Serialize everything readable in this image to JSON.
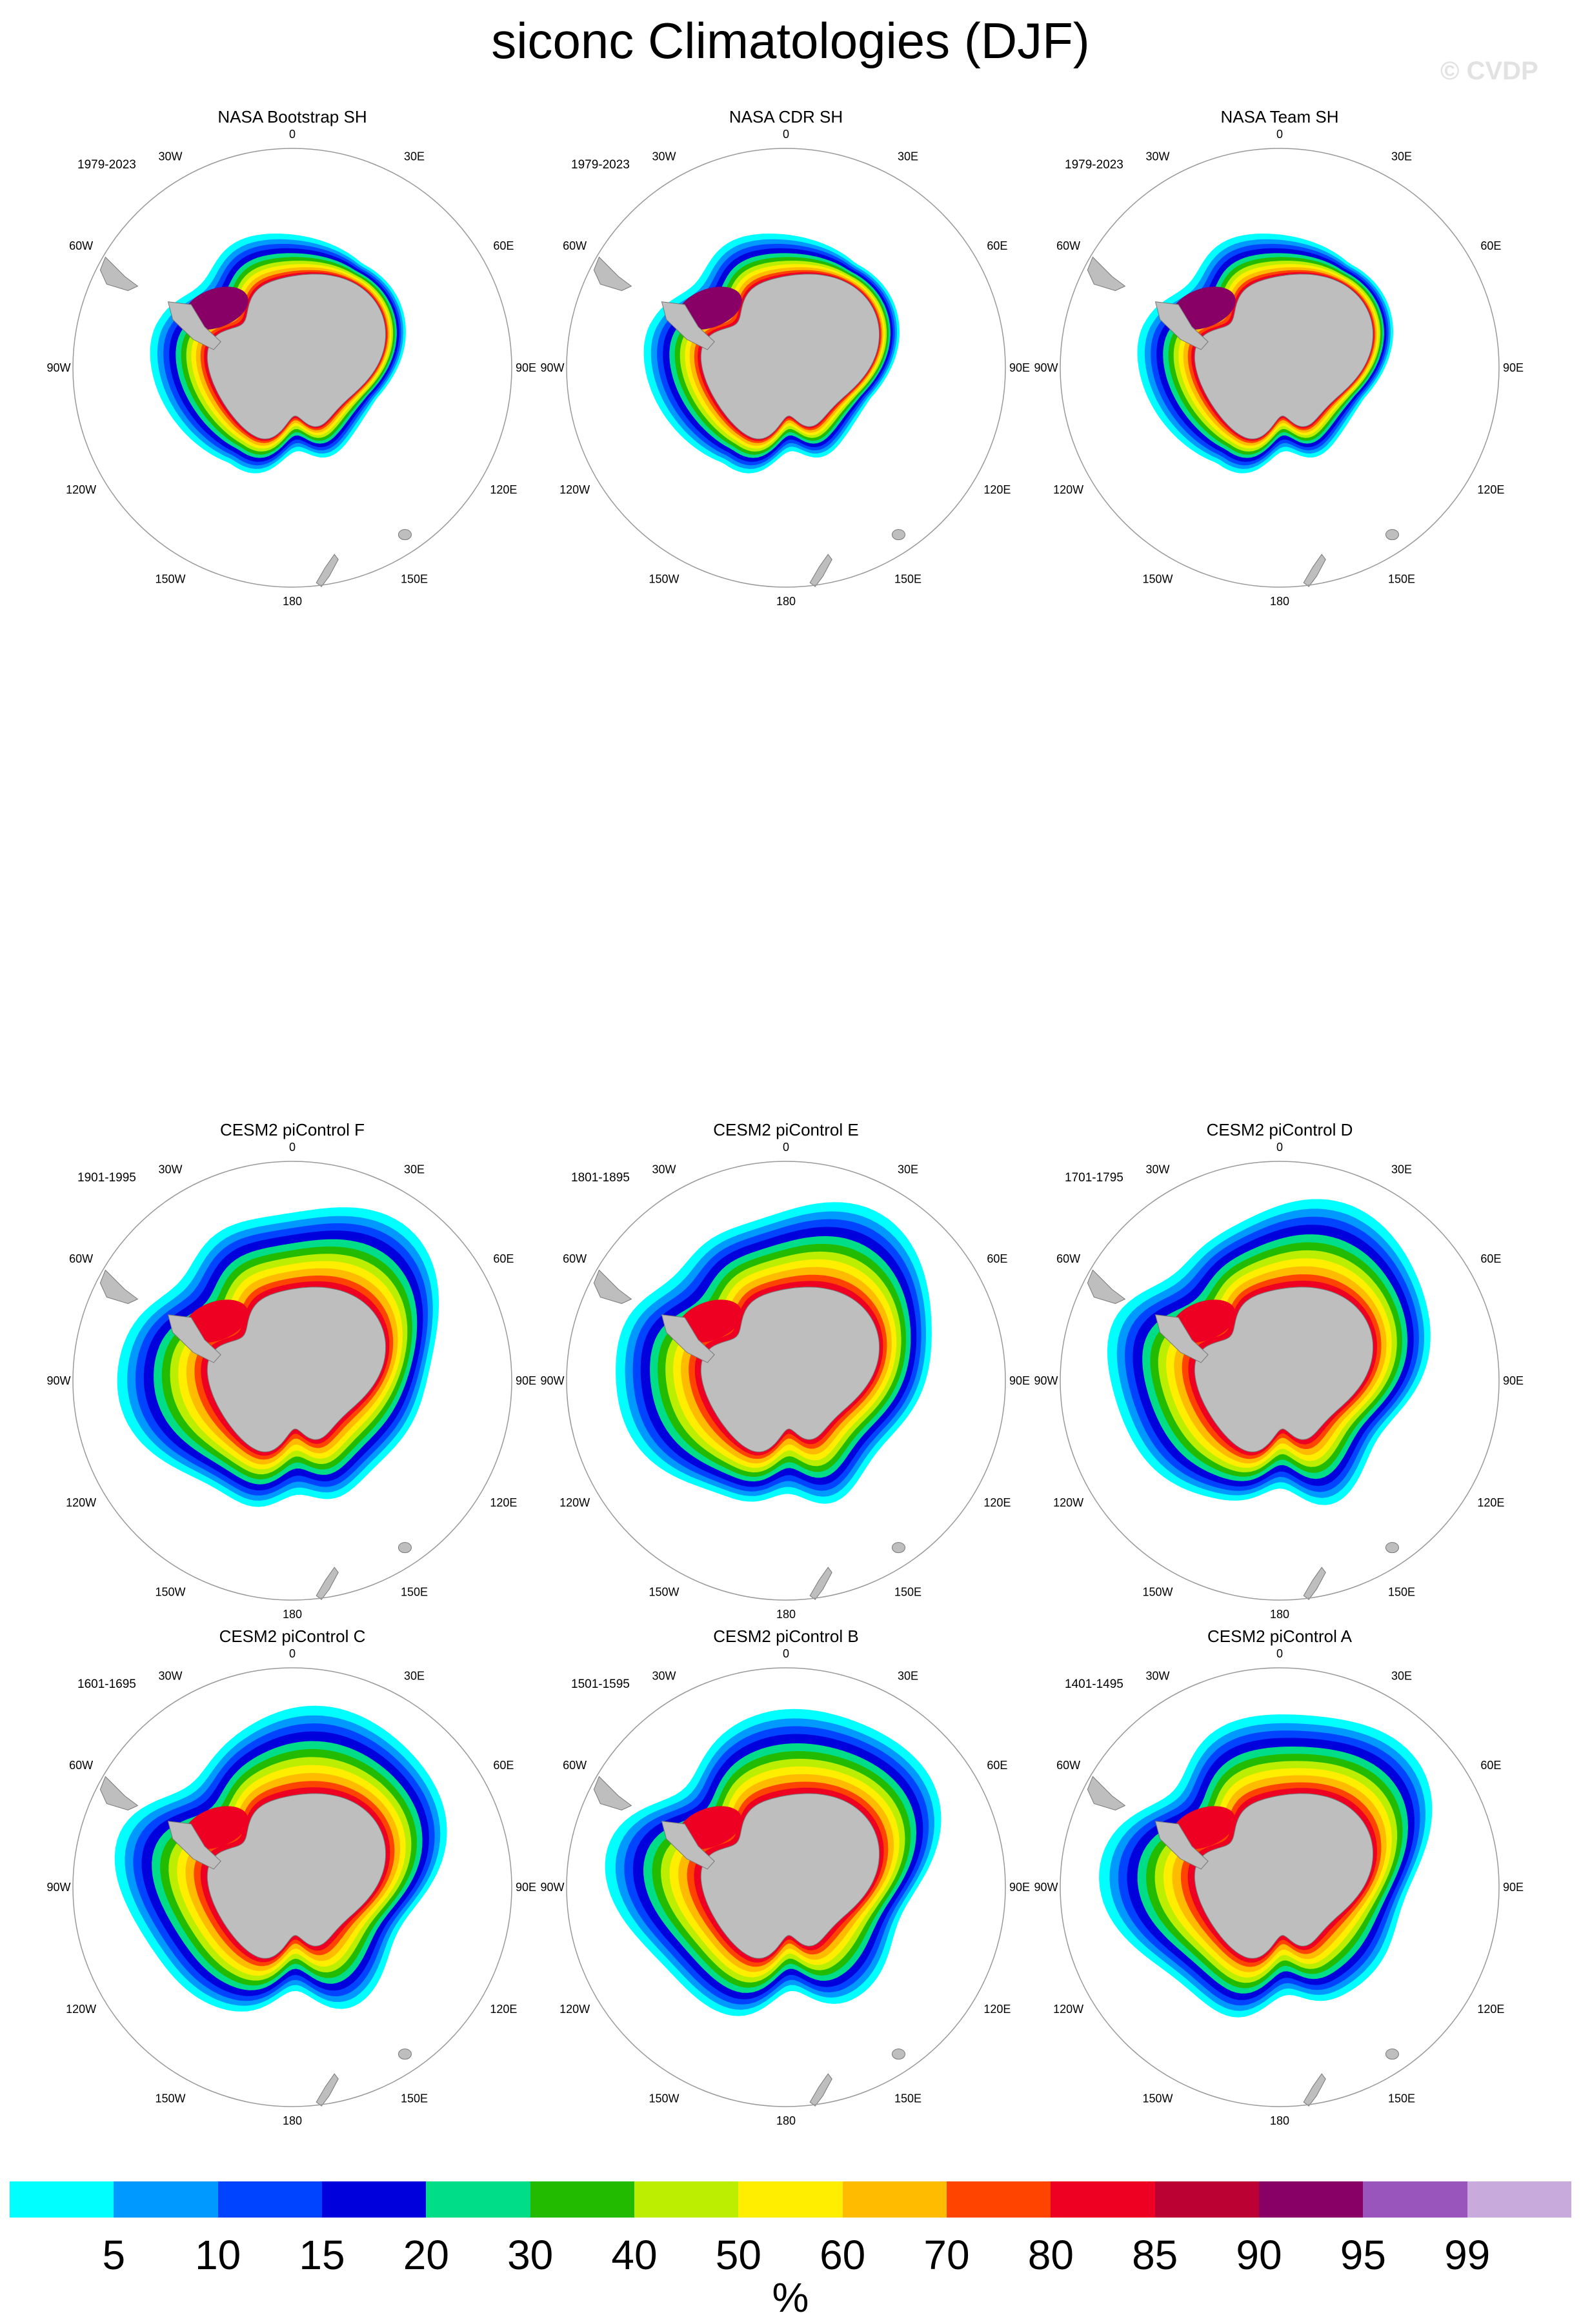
{
  "title": "siconc Climatologies (DJF)",
  "watermark": "© CVDP",
  "lon_labels": {
    "l0": "0",
    "l30e": "30E",
    "l60e": "60E",
    "l90e": "90E",
    "l120e": "120E",
    "l150e": "150E",
    "l180": "180",
    "l150w": "150W",
    "l120w": "120W",
    "l90w": "90W",
    "l60w": "60W",
    "l30w": "30W"
  },
  "panels": [
    {
      "title": "NASA Bootstrap SH",
      "period": "1979-2023",
      "kind": "obs"
    },
    {
      "title": "NASA CDR SH",
      "period": "1979-2023",
      "kind": "obs"
    },
    {
      "title": "NASA Team SH",
      "period": "1979-2023",
      "kind": "obs"
    },
    {
      "title": "CESM2 piControl F",
      "period": "1901-1995",
      "kind": "model"
    },
    {
      "title": "CESM2 piControl E",
      "period": "1801-1895",
      "kind": "model"
    },
    {
      "title": "CESM2 piControl D",
      "period": "1701-1795",
      "kind": "model"
    },
    {
      "title": "CESM2 piControl C",
      "period": "1601-1695",
      "kind": "model"
    },
    {
      "title": "CESM2 piControl B",
      "period": "1501-1595",
      "kind": "model"
    },
    {
      "title": "CESM2 piControl A",
      "period": "1401-1495",
      "kind": "model"
    }
  ],
  "colorbar": {
    "unit": "%",
    "ticks": [
      "5",
      "10",
      "15",
      "20",
      "30",
      "40",
      "50",
      "60",
      "70",
      "80",
      "85",
      "90",
      "95",
      "99"
    ],
    "colors": [
      "#00ffff",
      "#0099ff",
      "#0044ff",
      "#0000dd",
      "#00dd88",
      "#22bb00",
      "#bbee00",
      "#ffee00",
      "#ffbb00",
      "#ff4400",
      "#ee0022",
      "#bb0033",
      "#880066",
      "#9955bb",
      "#c8aadd"
    ]
  },
  "colors": {
    "land": "#bebebe",
    "land_outline": "#777777",
    "circle": "#999999"
  }
}
